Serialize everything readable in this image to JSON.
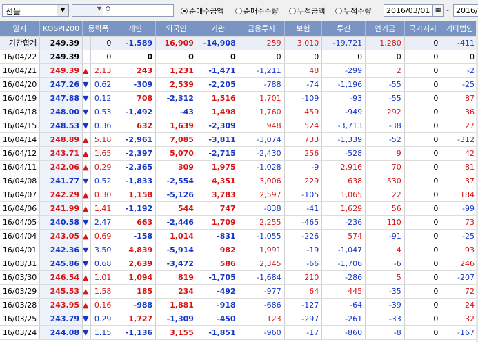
{
  "toolbar": {
    "market_select": "선물",
    "radios": [
      {
        "label": "순매수금액",
        "selected": true
      },
      {
        "label": "순매수수량",
        "selected": false
      },
      {
        "label": "누적금액",
        "selected": false
      },
      {
        "label": "누적수량",
        "selected": false
      }
    ],
    "date_from": "2016/03/01",
    "date_sep": "-",
    "date_to": "2016/"
  },
  "table": {
    "headers": [
      "일자",
      "KOSPI200",
      "등락폭",
      "개인",
      "외국인",
      "기관",
      "금융투자",
      "보험",
      "투신",
      "연기금",
      "국가지자",
      "기타법인"
    ],
    "rows": [
      {
        "date": "기간합계",
        "idx": "249.39",
        "dir": "",
        "chg": "0",
        "v": [
          "-1,589",
          "16,909",
          "-14,908",
          "259",
          "3,010",
          "-19,721",
          "1,280",
          "0",
          "-411"
        ],
        "sum": true
      },
      {
        "date": "16/04/22",
        "idx": "249.39",
        "dir": "",
        "chg": "0",
        "v": [
          "0",
          "0",
          "0",
          "0",
          "0",
          "0",
          "0",
          "0",
          "0"
        ]
      },
      {
        "date": "16/04/21",
        "idx": "249.39",
        "dir": "up",
        "chg": "2.13",
        "v": [
          "243",
          "1,231",
          "-1,471",
          "-1,211",
          "48",
          "-299",
          "2",
          "0",
          "-2"
        ]
      },
      {
        "date": "16/04/20",
        "idx": "247.26",
        "dir": "down",
        "chg": "0.62",
        "v": [
          "-309",
          "2,539",
          "-2,205",
          "-788",
          "-74",
          "-1,196",
          "-55",
          "0",
          "-25"
        ]
      },
      {
        "date": "16/04/19",
        "idx": "247.88",
        "dir": "down",
        "chg": "0.12",
        "v": [
          "708",
          "-2,312",
          "1,516",
          "1,701",
          "-109",
          "-93",
          "-55",
          "0",
          "87"
        ]
      },
      {
        "date": "16/04/18",
        "idx": "248.00",
        "dir": "down",
        "chg": "0.53",
        "v": [
          "-1,492",
          "-43",
          "1,498",
          "1,760",
          "459",
          "-949",
          "292",
          "0",
          "36"
        ]
      },
      {
        "date": "16/04/15",
        "idx": "248.53",
        "dir": "down",
        "chg": "0.36",
        "v": [
          "632",
          "1,639",
          "-2,309",
          "948",
          "524",
          "-3,713",
          "-38",
          "0",
          "27"
        ]
      },
      {
        "date": "16/04/14",
        "idx": "248.89",
        "dir": "up",
        "chg": "5.18",
        "v": [
          "-2,961",
          "7,085",
          "-3,811",
          "-3,074",
          "733",
          "-1,339",
          "-52",
          "0",
          "-312"
        ]
      },
      {
        "date": "16/04/12",
        "idx": "243.71",
        "dir": "up",
        "chg": "1.65",
        "v": [
          "-2,397",
          "5,070",
          "-2,715",
          "-2,430",
          "256",
          "-528",
          "9",
          "0",
          "42"
        ]
      },
      {
        "date": "16/04/11",
        "idx": "242.06",
        "dir": "up",
        "chg": "0.29",
        "v": [
          "-2,365",
          "309",
          "1,975",
          "-1,028",
          "-9",
          "2,916",
          "70",
          "0",
          "81"
        ]
      },
      {
        "date": "16/04/08",
        "idx": "241.77",
        "dir": "down",
        "chg": "0.52",
        "v": [
          "-1,833",
          "-2,554",
          "4,351",
          "3,006",
          "229",
          "638",
          "530",
          "0",
          "37"
        ]
      },
      {
        "date": "16/04/07",
        "idx": "242.29",
        "dir": "up",
        "chg": "0.30",
        "v": [
          "1,158",
          "-5,126",
          "3,783",
          "2,597",
          "-105",
          "1,065",
          "22",
          "0",
          "184"
        ]
      },
      {
        "date": "16/04/06",
        "idx": "241.99",
        "dir": "up",
        "chg": "1.41",
        "v": [
          "-1,192",
          "544",
          "747",
          "-838",
          "-41",
          "1,629",
          "56",
          "0",
          "-99"
        ]
      },
      {
        "date": "16/04/05",
        "idx": "240.58",
        "dir": "down",
        "chg": "2.47",
        "v": [
          "663",
          "-2,446",
          "1,709",
          "2,255",
          "-465",
          "-236",
          "110",
          "0",
          "73"
        ]
      },
      {
        "date": "16/04/04",
        "idx": "243.05",
        "dir": "up",
        "chg": "0.69",
        "v": [
          "-158",
          "1,014",
          "-831",
          "-1,055",
          "-226",
          "574",
          "-91",
          "0",
          "-25"
        ]
      },
      {
        "date": "16/04/01",
        "idx": "242.36",
        "dir": "down",
        "chg": "3.50",
        "v": [
          "4,839",
          "-5,914",
          "982",
          "1,991",
          "-19",
          "-1,047",
          "4",
          "0",
          "93"
        ]
      },
      {
        "date": "16/03/31",
        "idx": "245.86",
        "dir": "down",
        "chg": "0.68",
        "v": [
          "2,639",
          "-3,472",
          "586",
          "2,345",
          "-66",
          "-1,706",
          "-6",
          "0",
          "246"
        ]
      },
      {
        "date": "16/03/30",
        "idx": "246.54",
        "dir": "up",
        "chg": "1.01",
        "v": [
          "1,094",
          "819",
          "-1,705",
          "-1,684",
          "210",
          "-286",
          "5",
          "0",
          "-207"
        ]
      },
      {
        "date": "16/03/29",
        "idx": "245.53",
        "dir": "up",
        "chg": "1.58",
        "v": [
          "185",
          "234",
          "-492",
          "-977",
          "64",
          "445",
          "-35",
          "0",
          "72"
        ]
      },
      {
        "date": "16/03/28",
        "idx": "243.95",
        "dir": "up",
        "chg": "0.16",
        "v": [
          "-988",
          "1,881",
          "-918",
          "-686",
          "-127",
          "-64",
          "-39",
          "0",
          "24"
        ]
      },
      {
        "date": "16/03/25",
        "idx": "243.79",
        "dir": "down",
        "chg": "0.29",
        "v": [
          "1,727",
          "-1,309",
          "-450",
          "123",
          "-297",
          "-261",
          "-33",
          "0",
          "32"
        ]
      },
      {
        "date": "16/03/24",
        "idx": "244.08",
        "dir": "down",
        "chg": "1.15",
        "v": [
          "-1,136",
          "3,155",
          "-1,851",
          "-960",
          "-17",
          "-860",
          "-8",
          "0",
          "-167"
        ]
      }
    ]
  },
  "colors": {
    "up": "#d81414",
    "down": "#1435c8",
    "header_bg": "#7a94c4"
  }
}
